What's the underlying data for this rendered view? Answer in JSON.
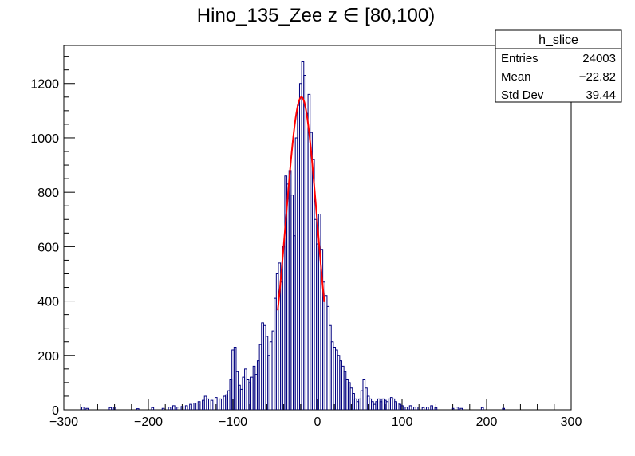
{
  "chart_data": {
    "type": "histogram",
    "title": "Hino_135_Zee z  ∈ [80,100)",
    "xlabel": "",
    "ylabel": "",
    "xlim": [
      -300,
      300
    ],
    "ylim": [
      0,
      1340
    ],
    "x_ticks": [
      "−300",
      "−200",
      "−100",
      "0",
      "100",
      "200",
      "300"
    ],
    "y_ticks": [
      "0",
      "200",
      "400",
      "600",
      "800",
      "1000",
      "1200"
    ],
    "bin_width": 2.5,
    "hist_color": "#00007f",
    "fit_color": "#ff0000",
    "stats_box": {
      "name": "h_slice",
      "rows": [
        {
          "label": "Entries",
          "value": "24003"
        },
        {
          "label": "Mean",
          "value": "−22.82"
        },
        {
          "label": "Std Dev",
          "value": "39.44"
        }
      ]
    },
    "bins": [
      [
        -277.5,
        10
      ],
      [
        -272.5,
        5
      ],
      [
        -245,
        8
      ],
      [
        -240,
        10
      ],
      [
        -212.5,
        4
      ],
      [
        -195,
        8
      ],
      [
        -182.5,
        5
      ],
      [
        -175,
        10
      ],
      [
        -170,
        15
      ],
      [
        -165,
        10
      ],
      [
        -160,
        12
      ],
      [
        -155,
        15
      ],
      [
        -150,
        20
      ],
      [
        -145,
        25
      ],
      [
        -140,
        30
      ],
      [
        -135,
        35
      ],
      [
        -132.5,
        50
      ],
      [
        -130,
        40
      ],
      [
        -125,
        35
      ],
      [
        -120,
        45
      ],
      [
        -115,
        40
      ],
      [
        -110,
        50
      ],
      [
        -107.5,
        55
      ],
      [
        -105,
        70
      ],
      [
        -102.5,
        110
      ],
      [
        -100,
        220
      ],
      [
        -97.5,
        230
      ],
      [
        -95,
        140
      ],
      [
        -92.5,
        90
      ],
      [
        -90,
        75
      ],
      [
        -87.5,
        120
      ],
      [
        -85,
        150
      ],
      [
        -82.5,
        110
      ],
      [
        -80,
        100
      ],
      [
        -77.5,
        120
      ],
      [
        -75,
        160
      ],
      [
        -72.5,
        130
      ],
      [
        -70,
        180
      ],
      [
        -67.5,
        240
      ],
      [
        -65,
        320
      ],
      [
        -62.5,
        310
      ],
      [
        -60,
        270
      ],
      [
        -57.5,
        200
      ],
      [
        -55,
        250
      ],
      [
        -52.5,
        290
      ],
      [
        -50,
        410
      ],
      [
        -47.5,
        500
      ],
      [
        -45,
        540
      ],
      [
        -42.5,
        470
      ],
      [
        -40,
        600
      ],
      [
        -37.5,
        860
      ],
      [
        -35,
        830
      ],
      [
        -32.5,
        880
      ],
      [
        -30,
        790
      ],
      [
        -27.5,
        640
      ],
      [
        -25,
        1000
      ],
      [
        -22.5,
        1120
      ],
      [
        -20,
        1200
      ],
      [
        -17.5,
        1280
      ],
      [
        -15,
        1230
      ],
      [
        -12.5,
        1090
      ],
      [
        -10,
        1160
      ],
      [
        -7.5,
        1020
      ],
      [
        -5,
        920
      ],
      [
        -2.5,
        700
      ],
      [
        0,
        610
      ],
      [
        2.5,
        720
      ],
      [
        5,
        590
      ],
      [
        7.5,
        470
      ],
      [
        10,
        420
      ],
      [
        12.5,
        380
      ],
      [
        15,
        310
      ],
      [
        17.5,
        250
      ],
      [
        20,
        230
      ],
      [
        22.5,
        220
      ],
      [
        25,
        200
      ],
      [
        27.5,
        180
      ],
      [
        30,
        160
      ],
      [
        32.5,
        140
      ],
      [
        35,
        110
      ],
      [
        37.5,
        100
      ],
      [
        40,
        80
      ],
      [
        42.5,
        60
      ],
      [
        45,
        40
      ],
      [
        47.5,
        30
      ],
      [
        50,
        40
      ],
      [
        52.5,
        70
      ],
      [
        55,
        110
      ],
      [
        57.5,
        80
      ],
      [
        60,
        50
      ],
      [
        62.5,
        40
      ],
      [
        65,
        30
      ],
      [
        67.5,
        20
      ],
      [
        70,
        30
      ],
      [
        72.5,
        40
      ],
      [
        75,
        30
      ],
      [
        77.5,
        40
      ],
      [
        80,
        35
      ],
      [
        82.5,
        30
      ],
      [
        85,
        40
      ],
      [
        87.5,
        45
      ],
      [
        90,
        40
      ],
      [
        92.5,
        30
      ],
      [
        95,
        25
      ],
      [
        97.5,
        20
      ],
      [
        100,
        15
      ],
      [
        105,
        10
      ],
      [
        110,
        15
      ],
      [
        115,
        10
      ],
      [
        120,
        10
      ],
      [
        125,
        8
      ],
      [
        130,
        10
      ],
      [
        135,
        15
      ],
      [
        140,
        8
      ],
      [
        160,
        5
      ],
      [
        165,
        10
      ],
      [
        170,
        5
      ],
      [
        195,
        8
      ],
      [
        220,
        5
      ]
    ],
    "fit": {
      "type": "gaussian",
      "amplitude": 1150,
      "mean": -19,
      "sigma": 18.5,
      "range": [
        -47,
        8
      ]
    }
  }
}
